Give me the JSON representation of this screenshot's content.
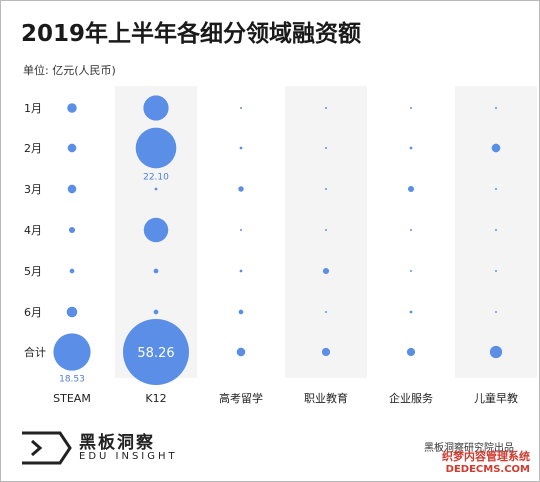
{
  "title": "2019年上半年各细分领域融资额",
  "unit_label": "单位: 亿元(人民币)",
  "source": "黑板洞察研究院出品",
  "logo": {
    "cn": "黑板洞察",
    "en": "EDU INSIGHT"
  },
  "watermark": {
    "line1": "织梦内容管理系统",
    "line2": "DEDECMS.COM"
  },
  "colors": {
    "bubble": "#5b8ee6",
    "column_shade": "#f4f4f4",
    "label_blue": "#4f7ed6"
  },
  "chart_data": {
    "type": "bubble",
    "title": "2019年上半年各细分领域融资额",
    "unit": "亿元(人民币)",
    "categories": [
      "STEAM",
      "K12",
      "高考留学",
      "职业教育",
      "企业服务",
      "儿童早教"
    ],
    "rows": [
      "1月",
      "2月",
      "3月",
      "4月",
      "5月",
      "6月",
      "合计"
    ],
    "values": [
      [
        1.2,
        8.5,
        0.05,
        0.05,
        0.05,
        0.05
      ],
      [
        1.0,
        22.1,
        0.1,
        0.05,
        0.1,
        1.0
      ],
      [
        1.0,
        0.1,
        0.4,
        0.05,
        0.5,
        0.05
      ],
      [
        0.5,
        8.0,
        0.05,
        0.05,
        0.05,
        0.05
      ],
      [
        0.3,
        0.3,
        0.1,
        0.5,
        0.05,
        0.05
      ],
      [
        1.5,
        0.3,
        0.3,
        0.05,
        0.1,
        0.05
      ],
      [
        18.53,
        58.26,
        1.0,
        0.9,
        0.9,
        2.0
      ]
    ],
    "labels": [
      {
        "row": 1,
        "col": 1,
        "text": "22.10",
        "position": "below"
      },
      {
        "row": 6,
        "col": 1,
        "text": "58.26",
        "position": "inside"
      },
      {
        "row": 6,
        "col": 0,
        "text": "18.53",
        "position": "below"
      }
    ]
  }
}
